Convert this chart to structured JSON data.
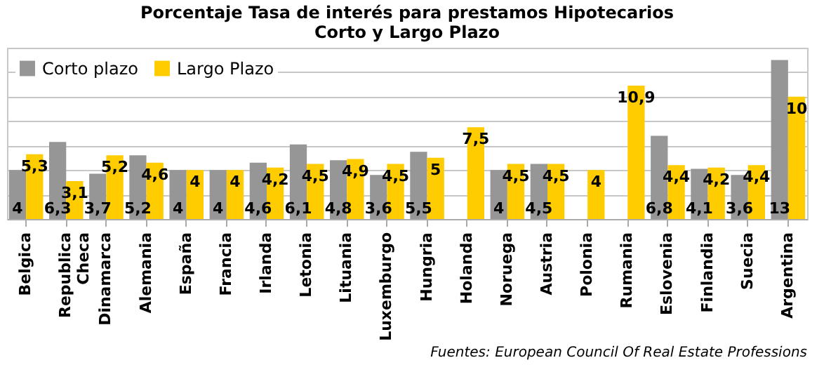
{
  "chart_data": {
    "type": "bar",
    "title": "Porcentaje Tasa de interés para prestamos Hipotecarios",
    "subtitle": "Corto y Largo Plazo",
    "categories": [
      "Belgica",
      "Republica Checa",
      "Dinamarca",
      "Alemania",
      "España",
      "Francia",
      "Irlanda",
      "Letonia",
      "Lituania",
      "Luxemburgo",
      "Hungria",
      "Holanda",
      "Noruega",
      "Austria",
      "Polonia",
      "Rumania",
      "Eslovenia",
      "Finlandia",
      "Suecia",
      "Argentina"
    ],
    "series": [
      {
        "name": "Corto plazo",
        "color": "#969696",
        "values": [
          4,
          6.3,
          3.7,
          5.2,
          4,
          4,
          4.6,
          6.1,
          4.8,
          3.6,
          5.5,
          null,
          4,
          4.5,
          null,
          null,
          6.8,
          4.1,
          3.6,
          13
        ],
        "value_labels": [
          "4",
          "6,3",
          "3,7",
          "5,2",
          "4",
          "4",
          "4,6",
          "6,1",
          "4,8",
          "3,6",
          "5,5",
          null,
          "4",
          "4,5",
          null,
          null,
          "6,8",
          "4,1",
          "3,6",
          "13"
        ]
      },
      {
        "name": "Largo Plazo",
        "color": "#ffcc00",
        "values": [
          5.3,
          3.1,
          5.2,
          4.6,
          4,
          4,
          4.2,
          4.5,
          4.9,
          4.5,
          5,
          7.5,
          4.5,
          4.5,
          4,
          10.9,
          4.4,
          4.2,
          4.4,
          10
        ],
        "value_labels": [
          "5,3",
          "3,1",
          "5,2",
          "4,6",
          "4",
          "4",
          "4,2",
          "4,5",
          "4,9",
          "4,5",
          "5",
          "7,5",
          "4,5",
          "4,5",
          "4",
          "10,9",
          "4,4",
          "4,2",
          "4,4",
          "10"
        ]
      }
    ],
    "ylim": [
      0,
      14
    ],
    "tick_labels": "x",
    "grid": "y",
    "legend": "top left",
    "data_labels": true,
    "annotations": [
      "Fuentes: European Council Of Real Estate Professions"
    ]
  }
}
